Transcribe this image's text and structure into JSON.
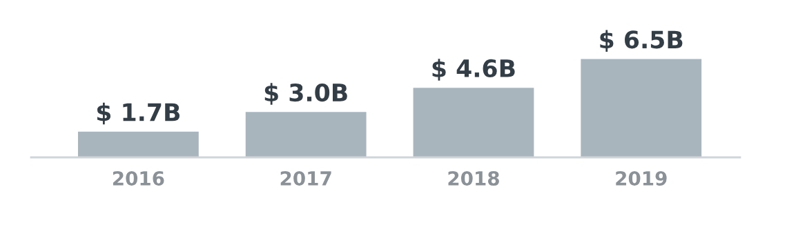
{
  "chart_data": {
    "type": "bar",
    "categories": [
      "2016",
      "2017",
      "2018",
      "2019"
    ],
    "values": [
      1.7,
      3.0,
      4.6,
      6.5
    ],
    "value_labels": [
      "$ 1.7B",
      "$ 3.0B",
      "$ 4.6B",
      "$ 6.5B"
    ],
    "color": "#a9b5bc",
    "grid": false,
    "legend": false,
    "tick_labels": "x"
  }
}
